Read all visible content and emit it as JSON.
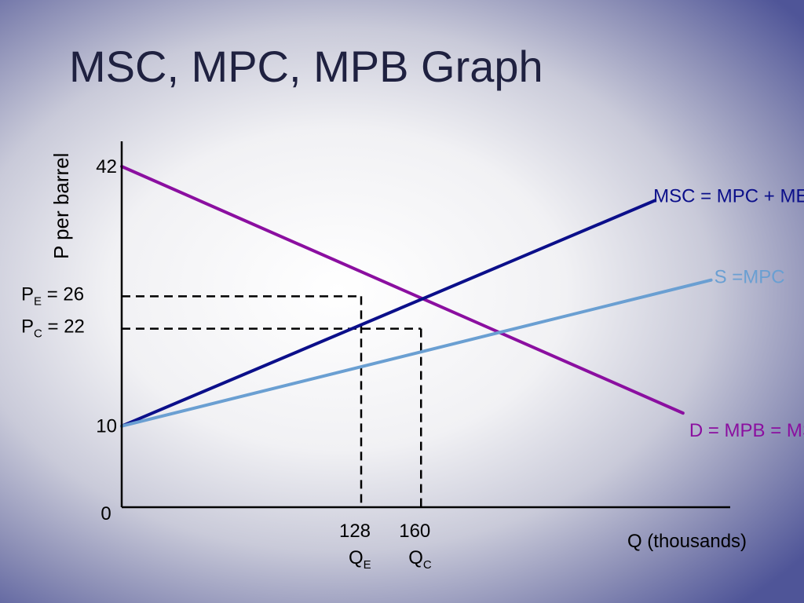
{
  "slide": {
    "title": "MSC, MPC, MPB Graph"
  },
  "chart_data": {
    "type": "line",
    "title": "MSC, MPC, MPB Graph",
    "xlabel": "Q (thousands)",
    "ylabel": "P per barrel",
    "origin_label": "0",
    "x_ticks": [
      {
        "value": 128,
        "label": "128",
        "sub_main": "Q",
        "sub": "E"
      },
      {
        "value": 160,
        "label": "160",
        "sub_main": "Q",
        "sub": "C"
      }
    ],
    "y_ticks": [
      {
        "value": 42,
        "label": "42"
      },
      {
        "value": 10,
        "label": "10"
      }
    ],
    "price_labels": [
      {
        "value": 26,
        "main": "P",
        "sub": "E",
        "rest": " = 26"
      },
      {
        "value": 22,
        "main": "P",
        "sub": "C",
        "rest": " = 22"
      }
    ],
    "series": [
      {
        "name": "D = MPB = MSB",
        "color": "#8b0fa0",
        "points": [
          [
            0,
            42
          ],
          [
            300,
            11.6
          ]
        ]
      },
      {
        "name": "MSC = MPC + MEC",
        "color": "#0b0f8a",
        "points": [
          [
            0,
            10
          ],
          [
            285,
            37.8
          ]
        ]
      },
      {
        "name": "S =MPC",
        "color": "#6a9fd2",
        "points": [
          [
            0,
            10
          ],
          [
            315,
            28
          ]
        ]
      }
    ],
    "guides": [
      {
        "x": 128,
        "y": 26
      },
      {
        "x": 160,
        "y": 22
      }
    ]
  }
}
